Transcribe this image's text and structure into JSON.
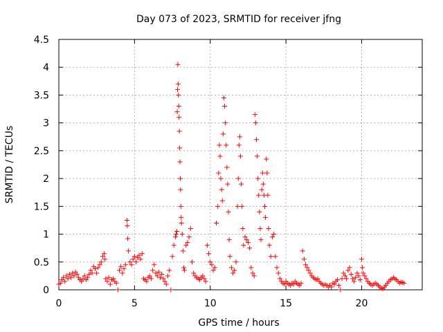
{
  "chart_data": {
    "type": "scatter",
    "title": "Day 073 of 2023, SRMTID for receiver jfng",
    "xlabel": "GPS time / hours",
    "ylabel": "SRMTID / TECUs",
    "xlim": [
      0,
      24
    ],
    "ylim": [
      0,
      4.5
    ],
    "xticks": [
      0,
      5,
      10,
      15,
      20
    ],
    "yticks": [
      0,
      0.5,
      1,
      1.5,
      2,
      2.5,
      3,
      3.5,
      4,
      4.5
    ],
    "xtick_labels": [
      "0",
      "5",
      "10",
      "15",
      "20"
    ],
    "ytick_labels": [
      "0",
      "0.5",
      "1",
      "1.5",
      "2",
      "2.5",
      "3",
      "3.5",
      "4",
      "4.5"
    ],
    "grid": true,
    "marker": "+",
    "color": "#ff0000",
    "series": [
      {
        "name": "SRMTID",
        "points": [
          [
            0.0,
            0.1
          ],
          [
            0.1,
            0.12
          ],
          [
            0.2,
            0.18
          ],
          [
            0.3,
            0.22
          ],
          [
            0.4,
            0.15
          ],
          [
            0.5,
            0.25
          ],
          [
            0.6,
            0.2
          ],
          [
            0.7,
            0.28
          ],
          [
            0.8,
            0.22
          ],
          [
            0.9,
            0.3
          ],
          [
            1.0,
            0.25
          ],
          [
            1.1,
            0.32
          ],
          [
            1.2,
            0.28
          ],
          [
            1.3,
            0.22
          ],
          [
            1.4,
            0.18
          ],
          [
            1.5,
            0.15
          ],
          [
            1.6,
            0.2
          ],
          [
            1.7,
            0.25
          ],
          [
            1.8,
            0.18
          ],
          [
            1.9,
            0.22
          ],
          [
            2.0,
            0.28
          ],
          [
            2.1,
            0.35
          ],
          [
            2.2,
            0.3
          ],
          [
            2.3,
            0.42
          ],
          [
            2.4,
            0.38
          ],
          [
            2.5,
            0.3
          ],
          [
            2.6,
            0.4
          ],
          [
            2.7,
            0.45
          ],
          [
            2.8,
            0.5
          ],
          [
            2.9,
            0.6
          ],
          [
            3.0,
            0.65
          ],
          [
            3.05,
            0.55
          ],
          [
            3.1,
            0.2
          ],
          [
            3.2,
            0.15
          ],
          [
            3.3,
            0.22
          ],
          [
            3.4,
            0.1
          ],
          [
            3.5,
            0.18
          ],
          [
            3.6,
            0.2
          ],
          [
            3.7,
            0.15
          ],
          [
            3.8,
            0.12
          ],
          [
            3.9,
            0.0
          ],
          [
            4.0,
            0.35
          ],
          [
            4.1,
            0.42
          ],
          [
            4.2,
            0.3
          ],
          [
            4.3,
            0.38
          ],
          [
            4.4,
            0.45
          ],
          [
            4.5,
            1.25
          ],
          [
            4.52,
            1.15
          ],
          [
            4.55,
            0.92
          ],
          [
            4.6,
            0.7
          ],
          [
            4.7,
            0.5
          ],
          [
            4.8,
            0.45
          ],
          [
            4.9,
            0.55
          ],
          [
            5.0,
            0.6
          ],
          [
            5.1,
            0.5
          ],
          [
            5.2,
            0.58
          ],
          [
            5.3,
            0.62
          ],
          [
            5.4,
            0.55
          ],
          [
            5.5,
            0.65
          ],
          [
            5.6,
            0.2
          ],
          [
            5.7,
            0.18
          ],
          [
            5.8,
            0.15
          ],
          [
            5.9,
            0.22
          ],
          [
            6.0,
            0.25
          ],
          [
            6.1,
            0.2
          ],
          [
            6.2,
            0.35
          ],
          [
            6.3,
            0.45
          ],
          [
            6.4,
            0.3
          ],
          [
            6.5,
            0.25
          ],
          [
            6.6,
            0.32
          ],
          [
            6.7,
            0.22
          ],
          [
            6.8,
            0.28
          ],
          [
            6.9,
            0.2
          ],
          [
            7.0,
            0.15
          ],
          [
            7.1,
            0.1
          ],
          [
            7.2,
            0.25
          ],
          [
            7.3,
            0.35
          ],
          [
            7.4,
            0.0
          ],
          [
            7.5,
            0.6
          ],
          [
            7.6,
            0.8
          ],
          [
            7.7,
            0.95
          ],
          [
            7.75,
            1.0
          ],
          [
            7.8,
            1.05
          ],
          [
            7.82,
            3.2
          ],
          [
            7.84,
            3.6
          ],
          [
            7.86,
            4.05
          ],
          [
            7.88,
            3.7
          ],
          [
            7.9,
            3.5
          ],
          [
            7.92,
            3.3
          ],
          [
            7.94,
            3.1
          ],
          [
            7.96,
            2.85
          ],
          [
            7.98,
            2.55
          ],
          [
            8.0,
            2.3
          ],
          [
            8.02,
            2.0
          ],
          [
            8.04,
            1.8
          ],
          [
            8.06,
            1.5
          ],
          [
            8.08,
            1.3
          ],
          [
            8.1,
            1.2
          ],
          [
            8.15,
            1.0
          ],
          [
            8.2,
            0.7
          ],
          [
            8.25,
            0.4
          ],
          [
            8.3,
            0.35
          ],
          [
            8.4,
            0.8
          ],
          [
            8.5,
            0.85
          ],
          [
            8.6,
            0.95
          ],
          [
            8.7,
            1.1
          ],
          [
            8.8,
            0.5
          ],
          [
            8.9,
            0.3
          ],
          [
            9.0,
            0.25
          ],
          [
            9.1,
            0.22
          ],
          [
            9.2,
            0.2
          ],
          [
            9.3,
            0.18
          ],
          [
            9.4,
            0.22
          ],
          [
            9.5,
            0.25
          ],
          [
            9.6,
            0.2
          ],
          [
            9.7,
            0.15
          ],
          [
            9.8,
            0.8
          ],
          [
            9.9,
            0.65
          ],
          [
            10.0,
            0.5
          ],
          [
            10.1,
            0.45
          ],
          [
            10.2,
            0.35
          ],
          [
            10.3,
            0.4
          ],
          [
            10.4,
            1.2
          ],
          [
            10.5,
            1.5
          ],
          [
            10.55,
            2.1
          ],
          [
            10.6,
            2.6
          ],
          [
            10.65,
            2.4
          ],
          [
            10.7,
            2.0
          ],
          [
            10.75,
            1.8
          ],
          [
            10.8,
            1.6
          ],
          [
            10.85,
            2.8
          ],
          [
            10.9,
            3.45
          ],
          [
            10.95,
            3.3
          ],
          [
            11.0,
            3.0
          ],
          [
            11.05,
            2.6
          ],
          [
            11.1,
            2.2
          ],
          [
            11.15,
            1.9
          ],
          [
            11.2,
            1.4
          ],
          [
            11.25,
            0.9
          ],
          [
            11.3,
            0.6
          ],
          [
            11.4,
            0.4
          ],
          [
            11.5,
            0.3
          ],
          [
            11.6,
            0.35
          ],
          [
            11.7,
            0.5
          ],
          [
            11.8,
            1.5
          ],
          [
            11.85,
            2.0
          ],
          [
            11.9,
            2.6
          ],
          [
            11.95,
            2.75
          ],
          [
            12.0,
            2.4
          ],
          [
            12.05,
            1.9
          ],
          [
            12.1,
            1.5
          ],
          [
            12.15,
            1.1
          ],
          [
            12.2,
            0.8
          ],
          [
            12.3,
            0.95
          ],
          [
            12.4,
            0.9
          ],
          [
            12.5,
            0.85
          ],
          [
            12.6,
            0.75
          ],
          [
            12.7,
            0.4
          ],
          [
            12.8,
            0.3
          ],
          [
            12.9,
            0.25
          ],
          [
            12.95,
            3.15
          ],
          [
            13.0,
            3.0
          ],
          [
            13.05,
            2.7
          ],
          [
            13.1,
            2.4
          ],
          [
            13.15,
            2.0
          ],
          [
            13.2,
            1.7
          ],
          [
            13.25,
            1.4
          ],
          [
            13.3,
            1.1
          ],
          [
            13.35,
            0.9
          ],
          [
            13.4,
            1.8
          ],
          [
            13.45,
            2.1
          ],
          [
            13.5,
            1.9
          ],
          [
            13.55,
            1.7
          ],
          [
            13.6,
            1.5
          ],
          [
            13.65,
            1.3
          ],
          [
            13.7,
            2.35
          ],
          [
            13.75,
            2.1
          ],
          [
            13.8,
            1.7
          ],
          [
            13.85,
            1.1
          ],
          [
            13.9,
            0.8
          ],
          [
            14.0,
            0.6
          ],
          [
            14.1,
            0.95
          ],
          [
            14.2,
            1.0
          ],
          [
            14.3,
            0.6
          ],
          [
            14.4,
            0.4
          ],
          [
            14.5,
            0.3
          ],
          [
            14.6,
            0.2
          ],
          [
            14.7,
            0.15
          ],
          [
            14.8,
            0.12
          ],
          [
            14.9,
            0.1
          ],
          [
            15.0,
            0.15
          ],
          [
            15.1,
            0.12
          ],
          [
            15.2,
            0.1
          ],
          [
            15.3,
            0.08
          ],
          [
            15.4,
            0.12
          ],
          [
            15.5,
            0.1
          ],
          [
            15.6,
            0.15
          ],
          [
            15.7,
            0.12
          ],
          [
            15.8,
            0.1
          ],
          [
            15.9,
            0.08
          ],
          [
            16.0,
            0.12
          ],
          [
            16.1,
            0.7
          ],
          [
            16.2,
            0.55
          ],
          [
            16.3,
            0.45
          ],
          [
            16.4,
            0.4
          ],
          [
            16.5,
            0.35
          ],
          [
            16.6,
            0.3
          ],
          [
            16.7,
            0.25
          ],
          [
            16.8,
            0.22
          ],
          [
            16.9,
            0.2
          ],
          [
            17.0,
            0.18
          ],
          [
            17.1,
            0.2
          ],
          [
            17.2,
            0.15
          ],
          [
            17.3,
            0.12
          ],
          [
            17.4,
            0.1
          ],
          [
            17.5,
            0.08
          ],
          [
            17.6,
            0.1
          ],
          [
            17.7,
            0.08
          ],
          [
            17.8,
            0.05
          ],
          [
            17.9,
            0.08
          ],
          [
            18.0,
            0.05
          ],
          [
            18.1,
            0.12
          ],
          [
            18.2,
            0.1
          ],
          [
            18.3,
            0.15
          ],
          [
            18.4,
            0.18
          ],
          [
            18.5,
            0.08
          ],
          [
            18.6,
            0.0
          ],
          [
            18.7,
            0.2
          ],
          [
            18.8,
            0.3
          ],
          [
            18.9,
            0.25
          ],
          [
            19.0,
            0.2
          ],
          [
            19.1,
            0.35
          ],
          [
            19.2,
            0.4
          ],
          [
            19.3,
            0.28
          ],
          [
            19.4,
            0.2
          ],
          [
            19.5,
            0.15
          ],
          [
            19.6,
            0.22
          ],
          [
            19.7,
            0.3
          ],
          [
            19.8,
            0.25
          ],
          [
            19.9,
            0.18
          ],
          [
            20.0,
            0.55
          ],
          [
            20.05,
            0.4
          ],
          [
            20.1,
            0.3
          ],
          [
            20.2,
            0.25
          ],
          [
            20.3,
            0.2
          ],
          [
            20.4,
            0.15
          ],
          [
            20.5,
            0.12
          ],
          [
            20.6,
            0.1
          ],
          [
            20.7,
            0.08
          ],
          [
            20.8,
            0.1
          ],
          [
            20.9,
            0.12
          ],
          [
            21.0,
            0.1
          ],
          [
            21.1,
            0.08
          ],
          [
            21.2,
            0.05
          ],
          [
            21.3,
            0.03
          ],
          [
            21.4,
            0.02
          ],
          [
            21.5,
            0.05
          ],
          [
            21.6,
            0.08
          ],
          [
            21.7,
            0.12
          ],
          [
            21.8,
            0.15
          ],
          [
            21.9,
            0.18
          ],
          [
            22.0,
            0.2
          ],
          [
            22.1,
            0.22
          ],
          [
            22.2,
            0.2
          ],
          [
            22.3,
            0.18
          ],
          [
            22.4,
            0.15
          ],
          [
            22.5,
            0.12
          ],
          [
            22.6,
            0.14
          ],
          [
            22.7,
            0.13
          ],
          [
            22.8,
            0.12
          ]
        ]
      }
    ]
  }
}
